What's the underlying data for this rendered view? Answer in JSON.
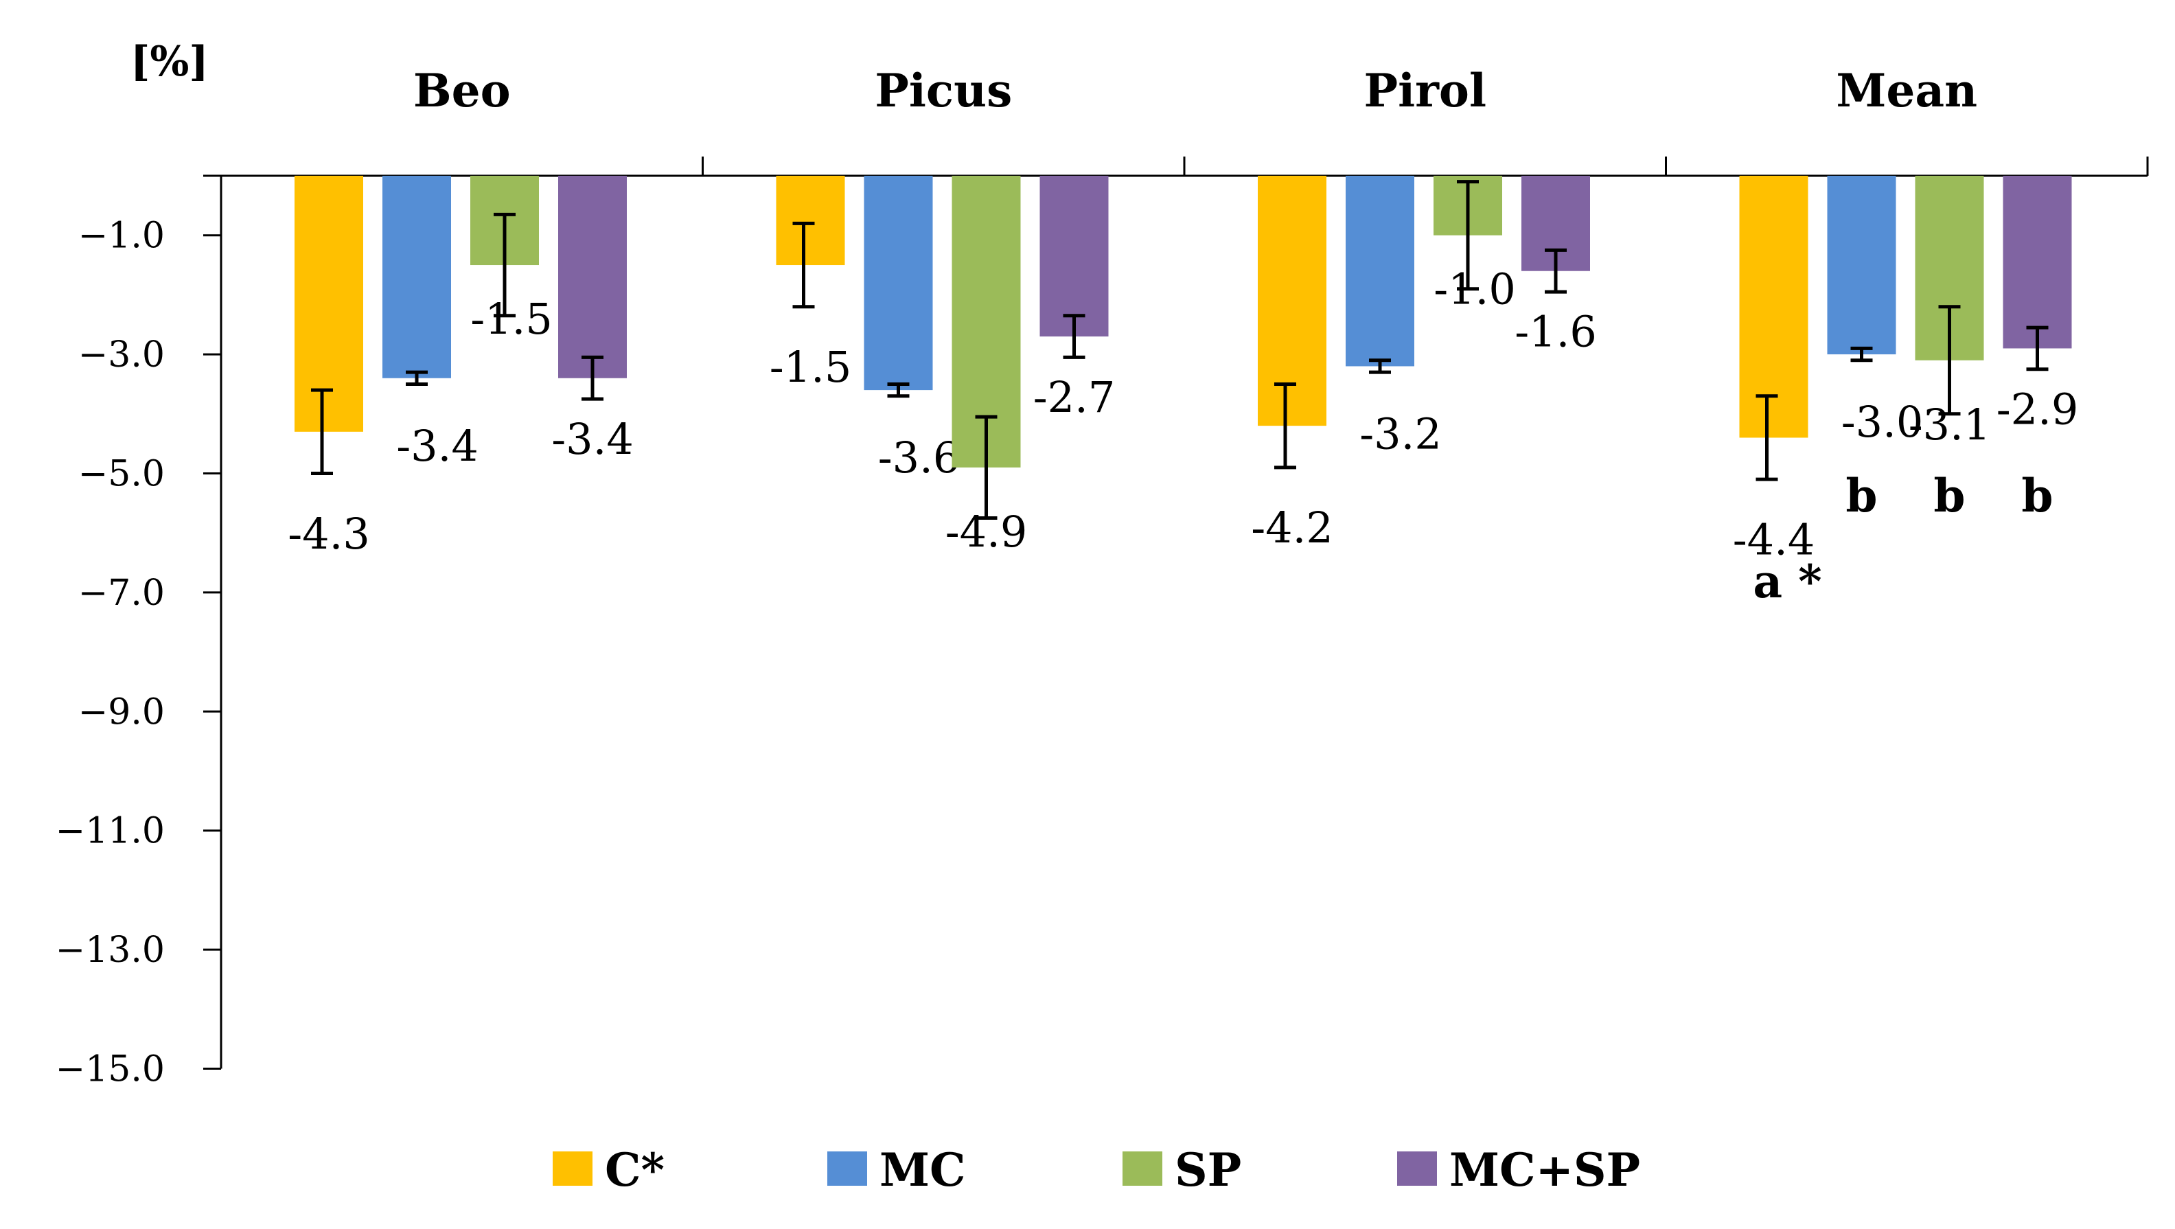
{
  "chart_data": {
    "type": "bar",
    "title": "",
    "ylabel": "[%]",
    "xlabel": "",
    "ylim": [
      -15.0,
      0
    ],
    "yticks": [
      -1.0,
      -3.0,
      -5.0,
      -7.0,
      -9.0,
      -11.0,
      -13.0,
      -15.0
    ],
    "ytick_labels": [
      "−1.0",
      "−3.0",
      "−5.0",
      "−7.0",
      "−9.0",
      "−11.0",
      "−13.0",
      "−15.0"
    ],
    "categories": [
      "Beo",
      "Picus",
      "Pirol",
      "Mean"
    ],
    "legend_position": "bottom",
    "grid": false,
    "series": [
      {
        "name": "C*",
        "color": "#FFC000",
        "values": [
          -4.3,
          -1.5,
          -4.2,
          -4.4
        ],
        "labels": [
          "-4.3",
          "-1.5",
          "-4.2",
          "-4.4"
        ],
        "error": [
          0.7,
          0.7,
          0.7,
          0.7
        ]
      },
      {
        "name": "MC",
        "color": "#558ED5",
        "values": [
          -3.4,
          -3.6,
          -3.2,
          -3.0
        ],
        "labels": [
          "-3.4",
          "-3.6",
          "-3.2",
          "-3.0"
        ],
        "error": [
          0.1,
          0.1,
          0.1,
          0.1
        ]
      },
      {
        "name": "SP",
        "color": "#9BBB59",
        "values": [
          -1.5,
          -4.9,
          -1.0,
          -3.1
        ],
        "labels": [
          "-1.5",
          "-4.9",
          "-1.0",
          "-3.1"
        ],
        "error": [
          0.85,
          0.85,
          0.9,
          0.9
        ]
      },
      {
        "name": "MC+SP",
        "color": "#8064A2",
        "values": [
          -3.4,
          -2.7,
          -1.6,
          -2.9
        ],
        "labels": [
          "-3.4",
          "-2.7",
          "-1.6",
          "-2.9"
        ],
        "error": [
          0.35,
          0.35,
          0.35,
          0.35
        ]
      }
    ],
    "significance": {
      "category": "Mean",
      "letters": [
        "a *",
        "b",
        "b",
        "b"
      ]
    }
  }
}
